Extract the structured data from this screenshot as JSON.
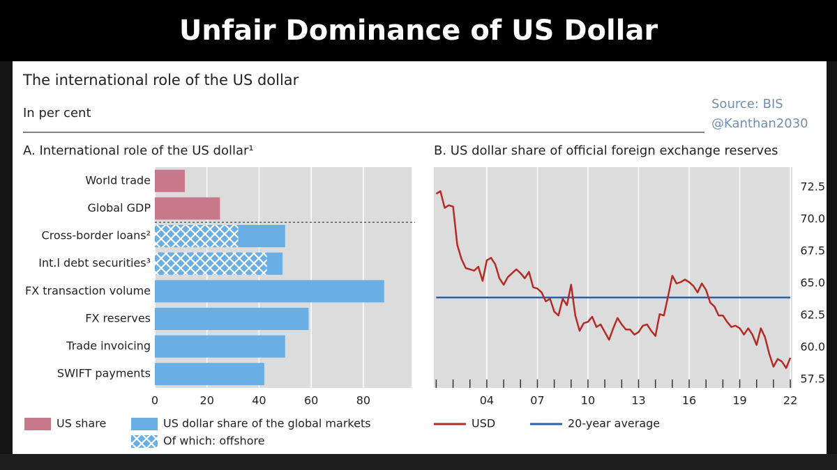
{
  "header": {
    "title": "Unfair Dominance of US Dollar"
  },
  "figure": {
    "title": "The international role of the US dollar",
    "unit": "In per cent",
    "source": "Source: BIS",
    "credit": "@Kanthan2030"
  },
  "chart_data": [
    {
      "type": "hbar",
      "title": "A. International role of the US dollar¹",
      "categories": [
        "World trade",
        "Global GDP",
        "Cross-border loans²",
        "Int.l debt securities³",
        "FX transaction volume",
        "FX reserves",
        "Trade invoicing",
        "SWIFT payments"
      ],
      "series": [
        {
          "name": "US share",
          "color": "#c8788a",
          "values": [
            11.5,
            25,
            null,
            null,
            null,
            null,
            null,
            null
          ]
        },
        {
          "name": "US dollar share of the global markets",
          "color": "#6aaee6",
          "values": [
            null,
            null,
            50,
            49,
            88,
            59,
            50,
            42
          ]
        },
        {
          "name": "Of which: offshore",
          "color": "#6aaee6",
          "pattern": "crosshatch",
          "values": [
            null,
            null,
            32,
            43,
            null,
            null,
            null,
            null
          ]
        }
      ],
      "xlim": [
        0,
        98.5
      ],
      "xticks": [
        0,
        20,
        40,
        60,
        80
      ],
      "grid": "vertical"
    },
    {
      "type": "line",
      "title": "B. US dollar share of official foreign exchange reserves",
      "x": [
        2001,
        2001.25,
        2001.5,
        2001.75,
        2002,
        2002.25,
        2002.5,
        2002.75,
        2003,
        2003.25,
        2003.5,
        2003.75,
        2004,
        2004.25,
        2004.5,
        2004.75,
        2005,
        2005.25,
        2005.5,
        2005.75,
        2006,
        2006.25,
        2006.5,
        2006.75,
        2007,
        2007.25,
        2007.5,
        2007.75,
        2008,
        2008.25,
        2008.5,
        2008.75,
        2009,
        2009.25,
        2009.5,
        2009.75,
        2010,
        2010.25,
        2010.5,
        2010.75,
        2011,
        2011.25,
        2011.5,
        2011.75,
        2012,
        2012.25,
        2012.5,
        2012.75,
        2013,
        2013.25,
        2013.5,
        2013.75,
        2014,
        2014.25,
        2014.5,
        2014.75,
        2015,
        2015.25,
        2015.5,
        2015.75,
        2016,
        2016.25,
        2016.5,
        2016.75,
        2017,
        2017.25,
        2017.5,
        2017.75,
        2018,
        2018.25,
        2018.5,
        2018.75,
        2019,
        2019.25,
        2019.5,
        2019.75,
        2020,
        2020.25,
        2020.5,
        2020.75,
        2021,
        2021.25,
        2021.5,
        2021.75,
        2022
      ],
      "series": [
        {
          "name": "USD",
          "color": "#b52a25",
          "values": [
            72.0,
            72.2,
            70.9,
            71.1,
            71.0,
            68.0,
            66.9,
            66.2,
            66.1,
            66.0,
            66.3,
            65.2,
            66.8,
            67.0,
            66.5,
            65.4,
            64.9,
            65.5,
            65.8,
            66.1,
            65.8,
            65.4,
            65.9,
            64.7,
            64.6,
            64.3,
            63.6,
            63.8,
            62.8,
            62.5,
            63.8,
            63.3,
            64.9,
            62.5,
            61.3,
            61.9,
            62.0,
            62.4,
            61.6,
            61.8,
            61.2,
            60.6,
            61.5,
            62.3,
            61.8,
            61.4,
            61.4,
            61.0,
            61.2,
            61.7,
            61.8,
            61.3,
            60.9,
            62.6,
            62.5,
            64.0,
            65.6,
            65.0,
            65.1,
            65.3,
            65.1,
            64.8,
            64.3,
            65.0,
            64.5,
            63.5,
            63.2,
            62.5,
            62.5,
            62.0,
            61.6,
            61.7,
            61.5,
            61.0,
            61.5,
            61.0,
            60.2,
            61.5,
            60.8,
            59.5,
            58.5,
            59.1,
            58.9,
            58.4,
            59.2
          ]
        }
      ],
      "reference_lines": [
        {
          "name": "20-year average",
          "color": "#2c5fa5",
          "value": 63.9
        }
      ],
      "xlim": [
        2000.86,
        2022.12
      ],
      "xticks": [
        {
          "value": 2004,
          "label": "04"
        },
        {
          "value": 2007,
          "label": "07"
        },
        {
          "value": 2010,
          "label": "10"
        },
        {
          "value": 2013,
          "label": "13"
        },
        {
          "value": 2016,
          "label": "16"
        },
        {
          "value": 2019,
          "label": "19"
        },
        {
          "value": 2022,
          "label": "22"
        }
      ],
      "xminor_ticks": [
        2001,
        2002,
        2003,
        2004,
        2005,
        2006,
        2007,
        2008,
        2009,
        2010,
        2011,
        2012,
        2013,
        2014,
        2015,
        2016,
        2017,
        2018,
        2019,
        2020,
        2021,
        2022
      ],
      "ylim": [
        56.85,
        74.08
      ],
      "yticks": [
        {
          "value": 57.5,
          "label": "57.5"
        },
        {
          "value": 60,
          "label": "60.0"
        },
        62.5,
        {
          "value": 65,
          "label": "65.0"
        },
        67.5,
        {
          "value": 70,
          "label": "70.0"
        },
        72.5
      ],
      "grid": "vertical"
    }
  ]
}
